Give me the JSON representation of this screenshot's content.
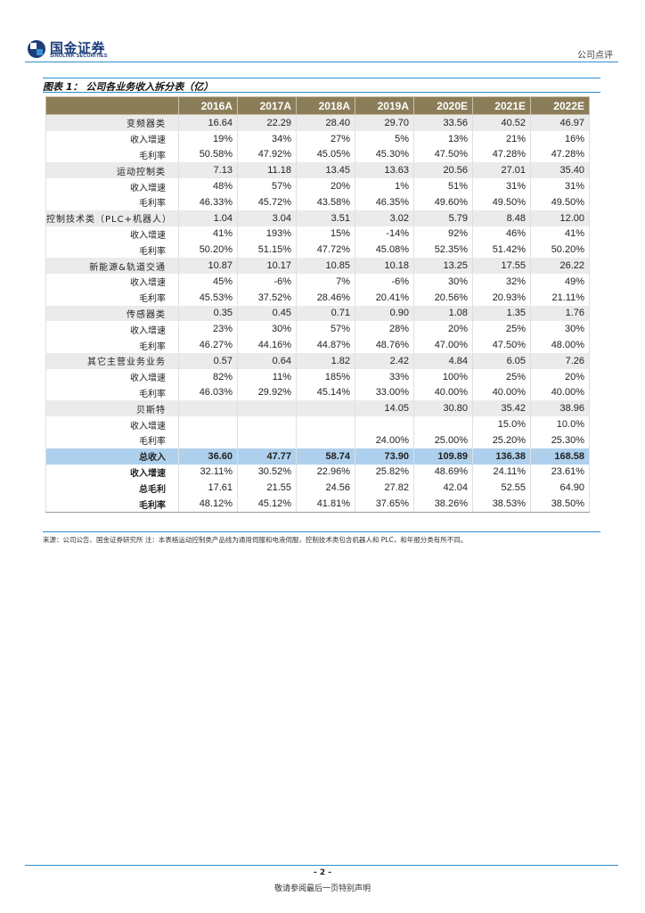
{
  "header": {
    "logo_cn": "国金证券",
    "logo_en": "SINOLINK SECURITIES",
    "doc_type": "公司点评",
    "colors": {
      "brand_blue": "#1c3d7a",
      "rule_blue": "#2b8fd2"
    }
  },
  "figure": {
    "title": "图表 1： 公司各业务收入拆分表（亿）",
    "columns": [
      "",
      "2016A",
      "2017A",
      "2018A",
      "2019A",
      "2020E",
      "2021E",
      "2022E"
    ],
    "rows": [
      {
        "label": "变频器类",
        "kind": "seg",
        "values": [
          "16.64",
          "22.29",
          "28.40",
          "29.70",
          "33.56",
          "40.52",
          "46.97"
        ]
      },
      {
        "label": "收入增速",
        "kind": "sub",
        "values": [
          "19%",
          "34%",
          "27%",
          "5%",
          "13%",
          "21%",
          "16%"
        ]
      },
      {
        "label": "毛利率",
        "kind": "sub",
        "values": [
          "50.58%",
          "47.92%",
          "45.05%",
          "45.30%",
          "47.50%",
          "47.28%",
          "47.28%"
        ]
      },
      {
        "label": "运动控制类",
        "kind": "seg",
        "values": [
          "7.13",
          "11.18",
          "13.45",
          "13.63",
          "20.56",
          "27.01",
          "35.40"
        ]
      },
      {
        "label": "收入增速",
        "kind": "sub",
        "values": [
          "48%",
          "57%",
          "20%",
          "1%",
          "51%",
          "31%",
          "31%"
        ]
      },
      {
        "label": "毛利率",
        "kind": "sub",
        "values": [
          "46.33%",
          "45.72%",
          "43.58%",
          "46.35%",
          "49.60%",
          "49.50%",
          "49.50%"
        ]
      },
      {
        "label": "控制技术类（PLC+机器人）",
        "kind": "seg",
        "values": [
          "1.04",
          "3.04",
          "3.51",
          "3.02",
          "5.79",
          "8.48",
          "12.00"
        ]
      },
      {
        "label": "收入增速",
        "kind": "sub",
        "values": [
          "41%",
          "193%",
          "15%",
          "-14%",
          "92%",
          "46%",
          "41%"
        ]
      },
      {
        "label": "毛利率",
        "kind": "sub",
        "values": [
          "50.20%",
          "51.15%",
          "47.72%",
          "45.08%",
          "52.35%",
          "51.42%",
          "50.20%"
        ]
      },
      {
        "label": "新能源&轨道交通",
        "kind": "seg",
        "values": [
          "10.87",
          "10.17",
          "10.85",
          "10.18",
          "13.25",
          "17.55",
          "26.22"
        ]
      },
      {
        "label": "收入增速",
        "kind": "sub",
        "values": [
          "45%",
          "-6%",
          "7%",
          "-6%",
          "30%",
          "32%",
          "49%"
        ]
      },
      {
        "label": "毛利率",
        "kind": "sub",
        "values": [
          "45.53%",
          "37.52%",
          "28.46%",
          "20.41%",
          "20.56%",
          "20.93%",
          "21.11%"
        ]
      },
      {
        "label": "传感器类",
        "kind": "seg",
        "values": [
          "0.35",
          "0.45",
          "0.71",
          "0.90",
          "1.08",
          "1.35",
          "1.76"
        ]
      },
      {
        "label": "收入增速",
        "kind": "sub",
        "values": [
          "23%",
          "30%",
          "57%",
          "28%",
          "20%",
          "25%",
          "30%"
        ]
      },
      {
        "label": "毛利率",
        "kind": "sub",
        "values": [
          "46.27%",
          "44.16%",
          "44.87%",
          "48.76%",
          "47.00%",
          "47.50%",
          "48.00%"
        ]
      },
      {
        "label": "其它主营业务业务",
        "kind": "seg",
        "values": [
          "0.57",
          "0.64",
          "1.82",
          "2.42",
          "4.84",
          "6.05",
          "7.26"
        ]
      },
      {
        "label": "收入增速",
        "kind": "sub",
        "values": [
          "82%",
          "11%",
          "185%",
          "33%",
          "100%",
          "25%",
          "20%"
        ]
      },
      {
        "label": "毛利率",
        "kind": "sub",
        "values": [
          "46.03%",
          "29.92%",
          "45.14%",
          "33.00%",
          "40.00%",
          "40.00%",
          "40.00%"
        ]
      },
      {
        "label": "贝斯特",
        "kind": "seg",
        "values": [
          "",
          "",
          "",
          "14.05",
          "30.80",
          "35.42",
          "38.96"
        ]
      },
      {
        "label": "收入增速",
        "kind": "sub",
        "values": [
          "",
          "",
          "",
          "",
          "",
          "15.0%",
          "10.0%"
        ]
      },
      {
        "label": "毛利率",
        "kind": "sub",
        "values": [
          "",
          "",
          "",
          "24.00%",
          "25.00%",
          "25.20%",
          "25.30%"
        ]
      },
      {
        "label": "总收入",
        "kind": "total",
        "values": [
          "36.60",
          "47.77",
          "58.74",
          "73.90",
          "109.89",
          "136.38",
          "168.58"
        ]
      },
      {
        "label": "收入增速",
        "kind": "sum",
        "values": [
          "32.11%",
          "30.52%",
          "22.96%",
          "25.82%",
          "48.69%",
          "24.11%",
          "23.61%"
        ]
      },
      {
        "label": "总毛利",
        "kind": "sum",
        "values": [
          "17.61",
          "21.55",
          "24.56",
          "27.82",
          "42.04",
          "52.55",
          "64.90"
        ]
      },
      {
        "label": "毛利率",
        "kind": "sum",
        "values": [
          "48.12%",
          "45.12%",
          "41.81%",
          "37.65%",
          "38.26%",
          "38.53%",
          "38.50%"
        ]
      }
    ],
    "source_note": "来源：公司公告、国金证券研究所    注：本表格运动控制类产品线为通用伺服和电液伺服，控制技术类包含机器人和 PLC，和年报分类有所不同。",
    "colors": {
      "header_bg": "#8b7d58",
      "segment_bg": "#ebebeb",
      "total_bg": "#aed0ec"
    }
  },
  "footer": {
    "page_number": "- 2 -",
    "disclaimer": "敬请参阅最后一页特别声明"
  }
}
